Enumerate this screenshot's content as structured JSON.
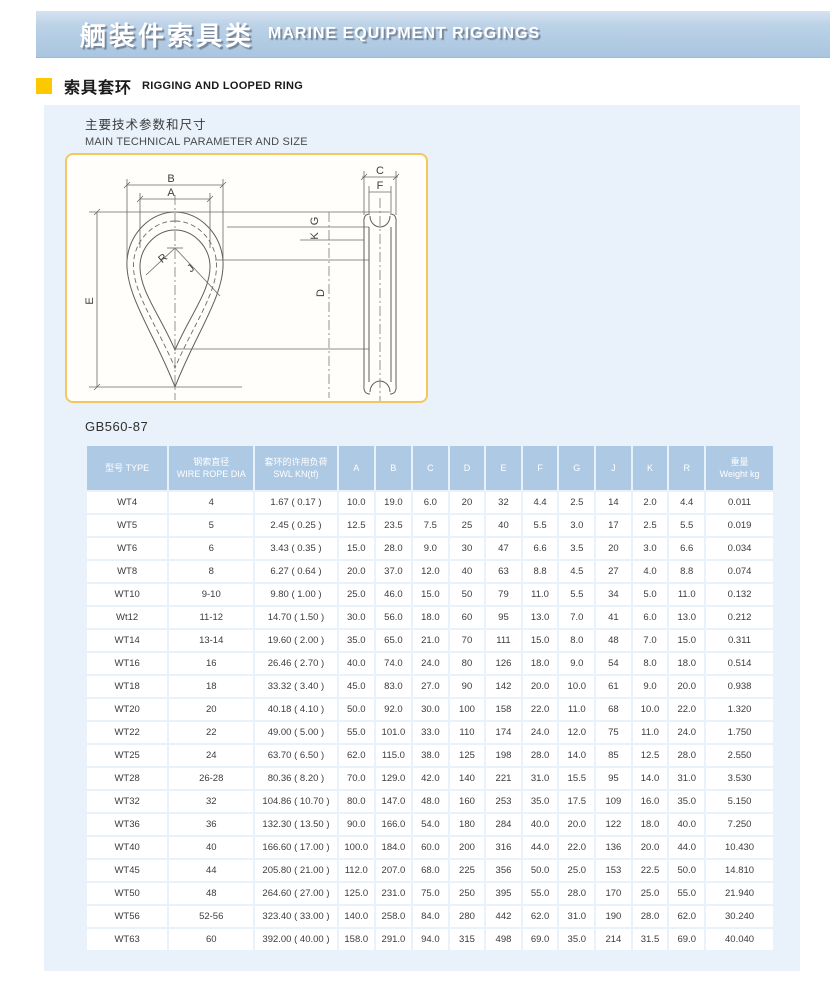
{
  "banner": {
    "title_zh": "舾装件索具类",
    "title_en": "MARINE EQUIPMENT RIGGINGS"
  },
  "section": {
    "title_zh": "索具套环",
    "title_en": "RIGGING AND LOOPED RING"
  },
  "panel": {
    "subtitle_zh": "主要技术参数和尺寸",
    "subtitle_en": "MAIN TECHNICAL PARAMETER AND SIZE",
    "standard": "GB560-87"
  },
  "diagram": {
    "labels": {
      "a": "A",
      "b": "B",
      "c": "C",
      "d": "D",
      "e": "E",
      "f": "F",
      "g": "G",
      "j": "J",
      "k": "K",
      "r": "R"
    }
  },
  "colors": {
    "banner_top": "#d6e3f0",
    "banner_bottom": "#a9c5e0",
    "accent_yellow": "#fcc800",
    "panel_bg": "#e9f1fa",
    "header_bg": "#aec9e3",
    "box_border": "#f3c75e"
  },
  "table": {
    "columns": [
      {
        "lines": [
          "型号 TYPE"
        ]
      },
      {
        "lines": [
          "钢索直径",
          "WIRE ROPE DIA"
        ]
      },
      {
        "lines": [
          "套环的许用负荷",
          "SWL KN(tf)"
        ]
      },
      {
        "lines": [
          "A"
        ]
      },
      {
        "lines": [
          "B"
        ]
      },
      {
        "lines": [
          "C"
        ]
      },
      {
        "lines": [
          "D"
        ]
      },
      {
        "lines": [
          "E"
        ]
      },
      {
        "lines": [
          "F"
        ]
      },
      {
        "lines": [
          "G"
        ]
      },
      {
        "lines": [
          "J"
        ]
      },
      {
        "lines": [
          "K"
        ]
      },
      {
        "lines": [
          "R"
        ]
      },
      {
        "lines": [
          "重量",
          "Weight kg"
        ]
      }
    ],
    "rows": [
      [
        "WT4",
        "4",
        "1.67 ( 0.17 )",
        "10.0",
        "19.0",
        "6.0",
        "20",
        "32",
        "4.4",
        "2.5",
        "14",
        "2.0",
        "4.4",
        "0.011"
      ],
      [
        "WT5",
        "5",
        "2.45 ( 0.25 )",
        "12.5",
        "23.5",
        "7.5",
        "25",
        "40",
        "5.5",
        "3.0",
        "17",
        "2.5",
        "5.5",
        "0.019"
      ],
      [
        "WT6",
        "6",
        "3.43 ( 0.35 )",
        "15.0",
        "28.0",
        "9.0",
        "30",
        "47",
        "6.6",
        "3.5",
        "20",
        "3.0",
        "6.6",
        "0.034"
      ],
      [
        "WT8",
        "8",
        "6.27 ( 0.64 )",
        "20.0",
        "37.0",
        "12.0",
        "40",
        "63",
        "8.8",
        "4.5",
        "27",
        "4.0",
        "8.8",
        "0.074"
      ],
      [
        "WT10",
        "9-10",
        "9.80 ( 1.00 )",
        "25.0",
        "46.0",
        "15.0",
        "50",
        "79",
        "11.0",
        "5.5",
        "34",
        "5.0",
        "11.0",
        "0.132"
      ],
      [
        "Wt12",
        "11-12",
        "14.70 ( 1.50 )",
        "30.0",
        "56.0",
        "18.0",
        "60",
        "95",
        "13.0",
        "7.0",
        "41",
        "6.0",
        "13.0",
        "0.212"
      ],
      [
        "WT14",
        "13-14",
        "19.60 ( 2.00 )",
        "35.0",
        "65.0",
        "21.0",
        "70",
        "111",
        "15.0",
        "8.0",
        "48",
        "7.0",
        "15.0",
        "0.311"
      ],
      [
        "WT16",
        "16",
        "26.46 ( 2.70 )",
        "40.0",
        "74.0",
        "24.0",
        "80",
        "126",
        "18.0",
        "9.0",
        "54",
        "8.0",
        "18.0",
        "0.514"
      ],
      [
        "WT18",
        "18",
        "33.32 ( 3.40 )",
        "45.0",
        "83.0",
        "27.0",
        "90",
        "142",
        "20.0",
        "10.0",
        "61",
        "9.0",
        "20.0",
        "0.938"
      ],
      [
        "WT20",
        "20",
        "40.18 ( 4.10 )",
        "50.0",
        "92.0",
        "30.0",
        "100",
        "158",
        "22.0",
        "11.0",
        "68",
        "10.0",
        "22.0",
        "1.320"
      ],
      [
        "WT22",
        "22",
        "49.00 ( 5.00 )",
        "55.0",
        "101.0",
        "33.0",
        "110",
        "174",
        "24.0",
        "12.0",
        "75",
        "11.0",
        "24.0",
        "1.750"
      ],
      [
        "WT25",
        "24",
        "63.70 ( 6.50 )",
        "62.0",
        "115.0",
        "38.0",
        "125",
        "198",
        "28.0",
        "14.0",
        "85",
        "12.5",
        "28.0",
        "2.550"
      ],
      [
        "WT28",
        "26-28",
        "80.36 ( 8.20 )",
        "70.0",
        "129.0",
        "42.0",
        "140",
        "221",
        "31.0",
        "15.5",
        "95",
        "14.0",
        "31.0",
        "3.530"
      ],
      [
        "WT32",
        "32",
        "104.86 ( 10.70 )",
        "80.0",
        "147.0",
        "48.0",
        "160",
        "253",
        "35.0",
        "17.5",
        "109",
        "16.0",
        "35.0",
        "5.150"
      ],
      [
        "WT36",
        "36",
        "132.30 ( 13.50 )",
        "90.0",
        "166.0",
        "54.0",
        "180",
        "284",
        "40.0",
        "20.0",
        "122",
        "18.0",
        "40.0",
        "7.250"
      ],
      [
        "WT40",
        "40",
        "166.60 ( 17.00 )",
        "100.0",
        "184.0",
        "60.0",
        "200",
        "316",
        "44.0",
        "22.0",
        "136",
        "20.0",
        "44.0",
        "10.430"
      ],
      [
        "WT45",
        "44",
        "205.80 ( 21.00 )",
        "112.0",
        "207.0",
        "68.0",
        "225",
        "356",
        "50.0",
        "25.0",
        "153",
        "22.5",
        "50.0",
        "14.810"
      ],
      [
        "WT50",
        "48",
        "264.60 ( 27.00 )",
        "125.0",
        "231.0",
        "75.0",
        "250",
        "395",
        "55.0",
        "28.0",
        "170",
        "25.0",
        "55.0",
        "21.940"
      ],
      [
        "WT56",
        "52-56",
        "323.40 ( 33.00 )",
        "140.0",
        "258.0",
        "84.0",
        "280",
        "442",
        "62.0",
        "31.0",
        "190",
        "28.0",
        "62.0",
        "30.240"
      ],
      [
        "WT63",
        "60",
        "392.00 ( 40.00 )",
        "158.0",
        "291.0",
        "94.0",
        "315",
        "498",
        "69.0",
        "35.0",
        "214",
        "31.5",
        "69.0",
        "40.040"
      ]
    ]
  }
}
